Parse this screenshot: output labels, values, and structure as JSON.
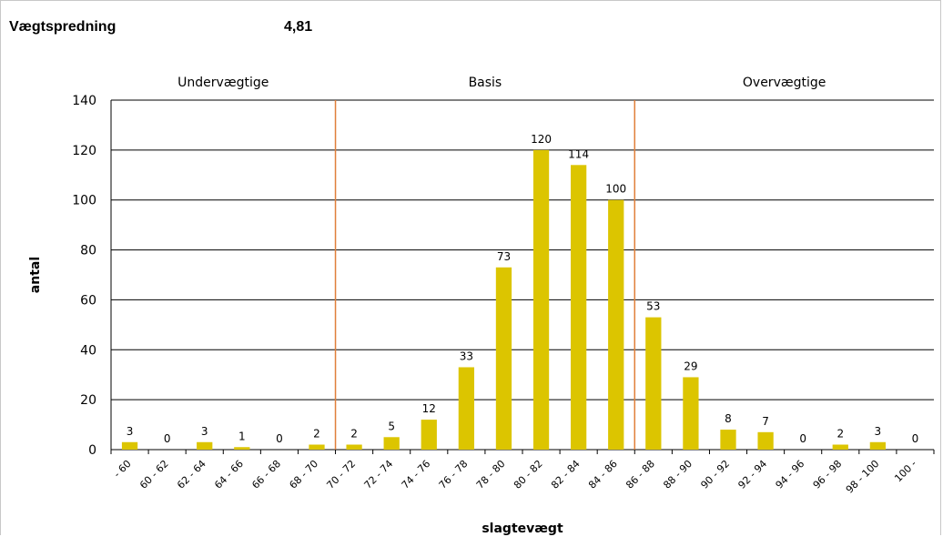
{
  "header": {
    "label": "Vægtspredning",
    "value": "4,81"
  },
  "chart_data": {
    "type": "bar",
    "xlabel": "slagtevægt",
    "ylabel": "antal",
    "ylim": [
      0,
      140
    ],
    "yticks": [
      0,
      20,
      40,
      60,
      80,
      100,
      120,
      140
    ],
    "grid": true,
    "categories": [
      "- 60",
      "60 - 62",
      "62 - 64",
      "64 - 66",
      "66 - 68",
      "68 - 70",
      "70 - 72",
      "72 - 74",
      "74 - 76",
      "76 - 78",
      "78 - 80",
      "80 - 82",
      "82 - 84",
      "84 - 86",
      "86 - 88",
      "88 - 90",
      "90 - 92",
      "92 - 94",
      "94 - 96",
      "96 - 98",
      "98 - 100",
      "100 -"
    ],
    "values": [
      3,
      0,
      3,
      1,
      0,
      2,
      2,
      5,
      12,
      33,
      73,
      120,
      114,
      100,
      53,
      29,
      8,
      7,
      0,
      2,
      3,
      0
    ],
    "bar_color": "#dcc500",
    "divider_color": "#e07f3a",
    "dividers_after_index": [
      5,
      13
    ],
    "regions": [
      {
        "label": "Undervægtige"
      },
      {
        "label": "Basis"
      },
      {
        "label": "Overvægtige"
      }
    ]
  }
}
